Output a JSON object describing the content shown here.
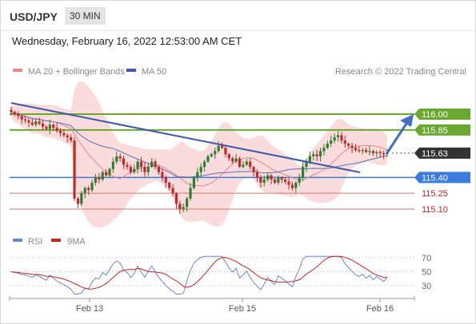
{
  "header": {
    "symbol": "USD/JPY",
    "timeframe": "30 MIN",
    "datetime": "Wednesday, February 16, 2022 12:53:00 AM CET"
  },
  "legend": {
    "bollinger": "MA 20 + Bollinger Bands",
    "ma50": "MA 50",
    "copyright": "Research © 2022 Trading Central"
  },
  "colors": {
    "up": "#2e7d32",
    "down": "#c62828",
    "band": "#f8d0d0",
    "ma50": "#5b6fb5",
    "ma20": "#e08888",
    "trend": "#3d58a8",
    "support": "#3b7be0",
    "resistance": "#6aa832",
    "redline": "#e07070",
    "label_blue": "#3b7be0",
    "label_green": "#6aa832",
    "label_dark": "#333333"
  },
  "chart_data": [
    {
      "type": "candlestick",
      "ylim": [
        114.9,
        116.15
      ],
      "x_ticks": [
        "Feb 13",
        "Feb 15",
        "Feb 16"
      ],
      "current_price": 115.63,
      "levels": [
        {
          "value": 116.0,
          "label": "116.00",
          "kind": "target"
        },
        {
          "value": 115.85,
          "label": "115.85",
          "kind": "resistance"
        },
        {
          "value": 115.4,
          "label": "115.40",
          "kind": "pivot"
        },
        {
          "value": 115.25,
          "label": "115.25",
          "kind": "support"
        },
        {
          "value": 115.1,
          "label": "115.10",
          "kind": "support"
        }
      ],
      "close_path": [
        116.02,
        116.0,
        115.98,
        115.95,
        115.94,
        115.92,
        115.9,
        115.93,
        115.91,
        115.88,
        115.86,
        115.9,
        115.87,
        115.84,
        115.82,
        115.8,
        115.78,
        115.75,
        115.2,
        115.15,
        115.25,
        115.3,
        115.28,
        115.35,
        115.4,
        115.38,
        115.45,
        115.42,
        115.48,
        115.55,
        115.6,
        115.58,
        115.52,
        115.5,
        115.45,
        115.48,
        115.55,
        115.5,
        115.45,
        115.5,
        115.55,
        115.5,
        115.45,
        115.4,
        115.35,
        115.3,
        115.25,
        115.15,
        115.1,
        115.12,
        115.2,
        115.3,
        115.4,
        115.45,
        115.5,
        115.55,
        115.6,
        115.62,
        115.65,
        115.7,
        115.68,
        115.62,
        115.58,
        115.55,
        115.58,
        115.5,
        115.52,
        115.55,
        115.5,
        115.45,
        115.4,
        115.35,
        115.38,
        115.42,
        115.38,
        115.35,
        115.4,
        115.38,
        115.36,
        115.33,
        115.3,
        115.35,
        115.4,
        115.5,
        115.55,
        115.6,
        115.62,
        115.6,
        115.65,
        115.68,
        115.72,
        115.75,
        115.78,
        115.8,
        115.75,
        115.72,
        115.7,
        115.68,
        115.66,
        115.65,
        115.66,
        115.64,
        115.65,
        115.63,
        115.64,
        115.63,
        115.62,
        115.63
      ],
      "rsi": {
        "labels": [
          "70",
          "50",
          "30"
        ],
        "ylim": [
          15,
          75
        ],
        "legend": [
          "RSI",
          "9MA"
        ]
      }
    }
  ]
}
